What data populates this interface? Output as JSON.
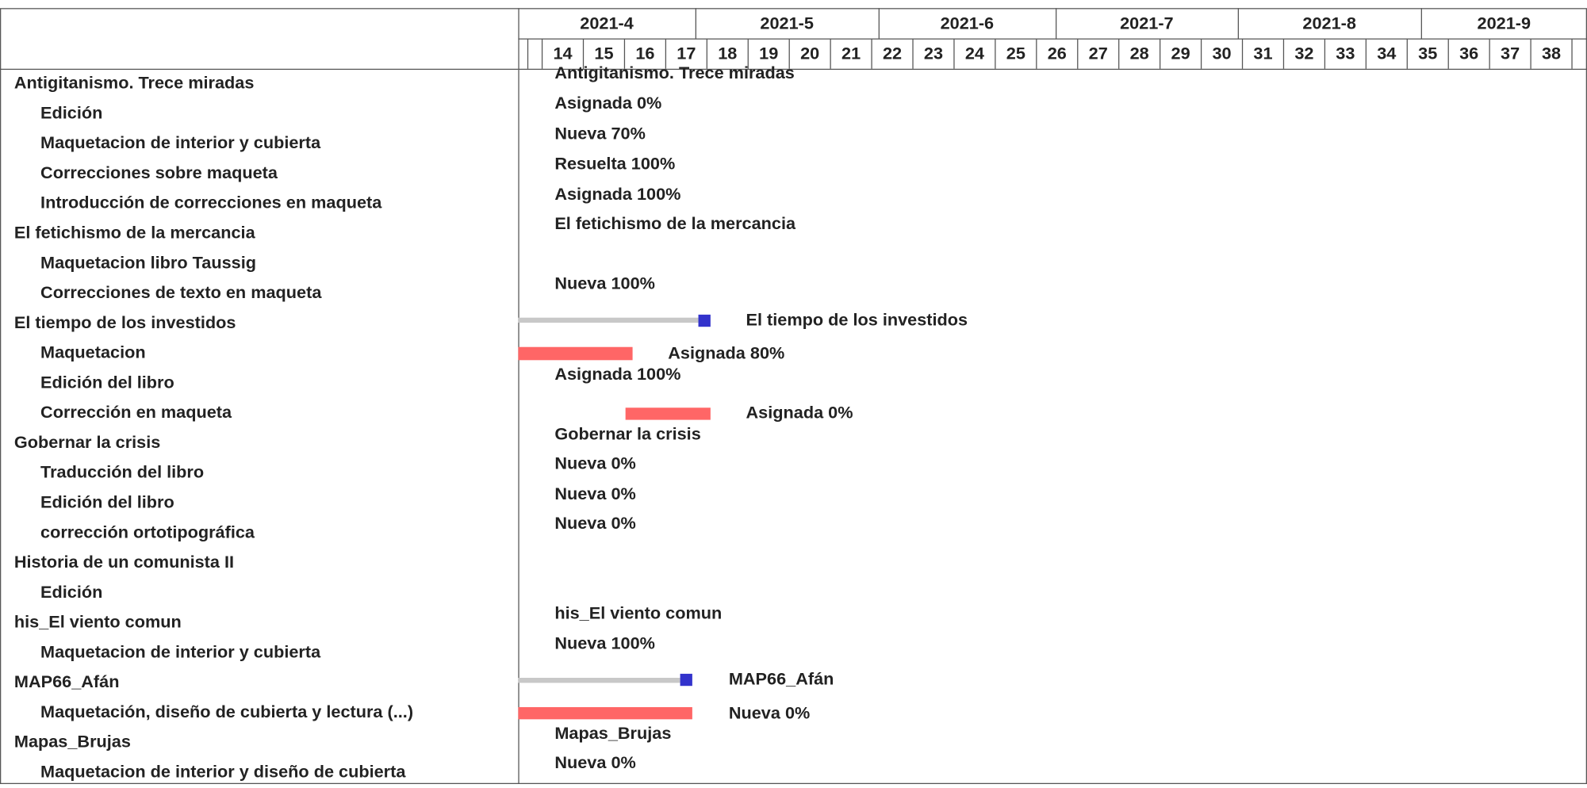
{
  "header": {
    "months": [
      "2021-4",
      "2021-5",
      "2021-6",
      "2021-7",
      "2021-8",
      "2021-9"
    ],
    "weeks": [
      "14",
      "15",
      "16",
      "17",
      "18",
      "19",
      "20",
      "21",
      "22",
      "23",
      "24",
      "25",
      "26",
      "27",
      "28",
      "29",
      "30",
      "31",
      "32",
      "33",
      "34",
      "35",
      "36",
      "37",
      "38"
    ]
  },
  "projects": [
    {
      "name": "Antigitanismo. Trece miradas",
      "tasks": [
        "Edición",
        "Maquetacion de interior y cubierta",
        "Correcciones sobre maqueta",
        "Introducción de correcciones en maqueta"
      ]
    },
    {
      "name": "El fetichismo de la mercancia",
      "tasks": [
        "Maquetacion libro Taussig",
        "Correcciones de texto en maqueta"
      ]
    },
    {
      "name": "El tiempo de los investidos",
      "tasks": [
        "Maquetacion",
        "Edición del libro",
        "Corrección en maqueta"
      ]
    },
    {
      "name": "Gobernar la crisis",
      "tasks": [
        "Traducción del libro",
        "Edición del libro",
        "corrección ortotipográfica"
      ]
    },
    {
      "name": "Historia de un comunista II",
      "tasks": [
        "Edición"
      ]
    },
    {
      "name": "his_El viento comun",
      "tasks": [
        "Maquetacion de interior y cubierta"
      ]
    },
    {
      "name": "MAP66_Afán",
      "tasks": [
        "Maquetación, diseño de cubierta y lectura  (...)"
      ]
    },
    {
      "name": "Mapas_Brujas",
      "tasks": [
        "Maquetacion de interior y diseño de cubierta"
      ]
    }
  ],
  "bar_labels": [
    "Antigitanismo. Trece miradas",
    "Asignada 0%",
    "Nueva 70%",
    "Resuelta 100%",
    "Asignada 100%",
    "El fetichismo de la mercancia",
    "Nueva 100%",
    "El tiempo de los investidos",
    "Asignada 80%",
    "Asignada 100%",
    "Asignada 0%",
    "Gobernar la crisis",
    "Nueva 0%",
    "Nueva 0%",
    "Nueva 0%",
    "his_El viento comun",
    "Nueva 100%",
    "MAP66_Afán",
    "Nueva 0%",
    "Mapas_Brujas",
    "Nueva 0%"
  ]
}
